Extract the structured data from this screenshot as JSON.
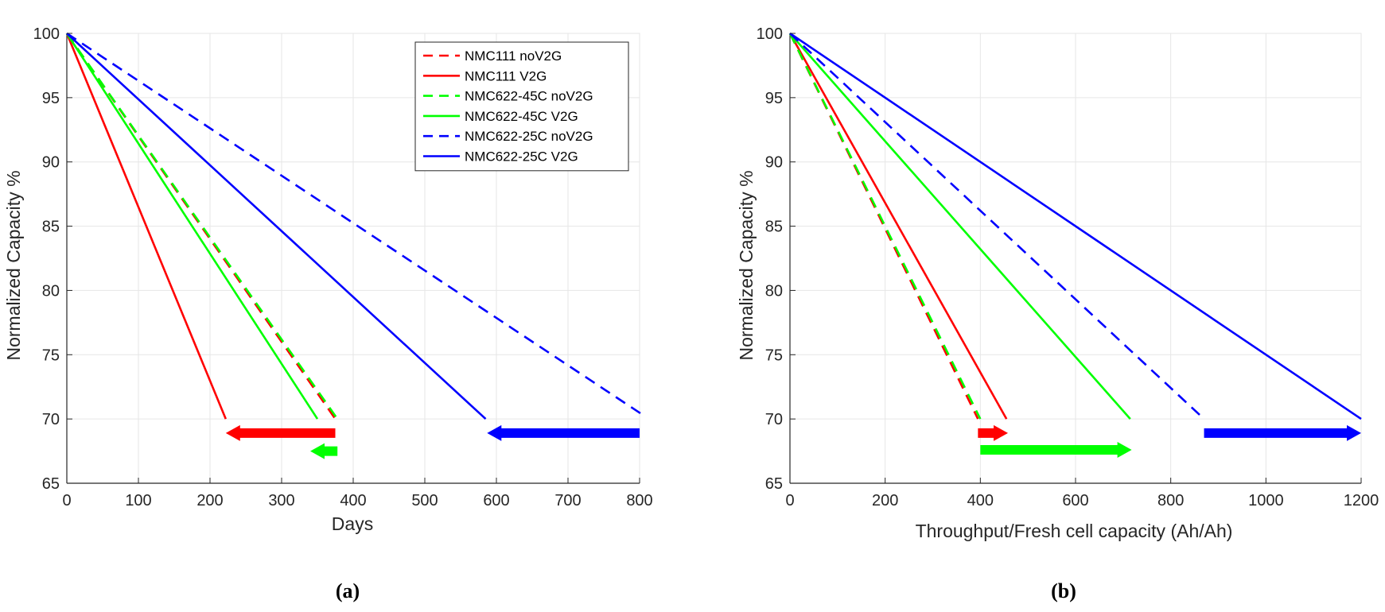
{
  "chart_data": [
    {
      "id": "a",
      "type": "line",
      "panel_label": "(a)",
      "xlabel": "Days",
      "ylabel": "Normalized Capacity %",
      "xlim": [
        0,
        800
      ],
      "ylim": [
        65,
        100
      ],
      "xticks": [
        0,
        100,
        200,
        300,
        400,
        500,
        600,
        700,
        800
      ],
      "yticks": [
        65,
        70,
        75,
        80,
        85,
        90,
        95,
        100
      ],
      "grid": true,
      "legend_position": "top-right",
      "series": [
        {
          "name": "NMC111 noV2G",
          "color": "#ff0000",
          "style": "dashed",
          "x": [
            0,
            375
          ],
          "y": [
            100,
            70
          ]
        },
        {
          "name": "NMC111 V2G",
          "color": "#ff0000",
          "style": "solid",
          "x": [
            0,
            222
          ],
          "y": [
            100,
            70
          ]
        },
        {
          "name": "NMC622-45C noV2G",
          "color": "#00ff00",
          "style": "dashed",
          "x": [
            0,
            378
          ],
          "y": [
            100,
            70
          ]
        },
        {
          "name": "NMC622-45C V2G",
          "color": "#00ff00",
          "style": "solid",
          "x": [
            0,
            350
          ],
          "y": [
            100,
            70
          ]
        },
        {
          "name": "NMC622-25C noV2G",
          "color": "#0000ff",
          "style": "dashed",
          "x": [
            0,
            805
          ],
          "y": [
            100,
            70.3
          ]
        },
        {
          "name": "NMC622-25C V2G",
          "color": "#0000ff",
          "style": "solid",
          "x": [
            0,
            585
          ],
          "y": [
            100,
            70
          ]
        }
      ],
      "arrows": [
        {
          "color": "#ff0000",
          "from": 375,
          "to": 222,
          "y": 68.9,
          "direction": "left"
        },
        {
          "color": "#00ff00",
          "from": 378,
          "to": 340,
          "y": 67.5,
          "direction": "left"
        },
        {
          "color": "#0000ff",
          "from": 800,
          "to": 587,
          "y": 68.9,
          "direction": "left"
        }
      ]
    },
    {
      "id": "b",
      "type": "line",
      "panel_label": "(b)",
      "xlabel": "Throughput/Fresh cell capacity (Ah/Ah)",
      "ylabel": "Normalized Capacity %",
      "xlim": [
        0,
        1200
      ],
      "ylim": [
        65,
        100
      ],
      "xticks": [
        0,
        200,
        400,
        600,
        800,
        1000,
        1200
      ],
      "yticks": [
        65,
        70,
        75,
        80,
        85,
        90,
        95,
        100
      ],
      "grid": true,
      "legend_position": "none",
      "series": [
        {
          "name": "NMC111 noV2G",
          "color": "#ff0000",
          "style": "dashed",
          "x": [
            0,
            395
          ],
          "y": [
            100,
            70
          ]
        },
        {
          "name": "NMC111 V2G",
          "color": "#ff0000",
          "style": "solid",
          "x": [
            0,
            455
          ],
          "y": [
            100,
            70
          ]
        },
        {
          "name": "NMC622-45C noV2G",
          "color": "#00ff00",
          "style": "dashed",
          "x": [
            0,
            400
          ],
          "y": [
            100,
            70
          ]
        },
        {
          "name": "NMC622-45C V2G",
          "color": "#00ff00",
          "style": "solid",
          "x": [
            0,
            715
          ],
          "y": [
            100,
            70
          ]
        },
        {
          "name": "NMC622-25C noV2G",
          "color": "#0000ff",
          "style": "dashed",
          "x": [
            0,
            870
          ],
          "y": [
            100,
            70
          ]
        },
        {
          "name": "NMC622-25C V2G",
          "color": "#0000ff",
          "style": "solid",
          "x": [
            0,
            1200
          ],
          "y": [
            100,
            70
          ]
        }
      ],
      "arrows": [
        {
          "color": "#ff0000",
          "from": 395,
          "to": 458,
          "y": 68.9,
          "direction": "right"
        },
        {
          "color": "#00ff00",
          "from": 400,
          "to": 718,
          "y": 67.6,
          "direction": "right"
        },
        {
          "color": "#0000ff",
          "from": 870,
          "to": 1200,
          "y": 68.9,
          "direction": "right"
        }
      ]
    }
  ]
}
